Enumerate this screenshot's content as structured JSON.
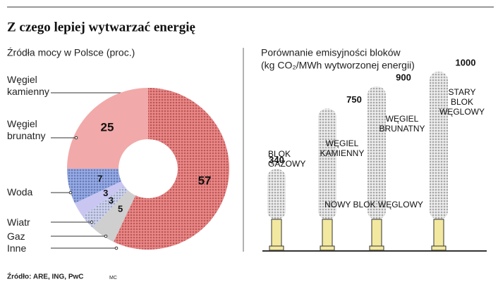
{
  "title": "Z czego lepiej wytwarzać energię",
  "chart_data": [
    {
      "type": "donut",
      "subtitle": "Źródła mocy w Polsce (proc.)",
      "categories": [
        "Węgiel kamienny",
        "Inne",
        "Gaz",
        "Wiatr",
        "Woda",
        "Węgiel brunatny"
      ],
      "values": [
        57,
        5,
        3,
        3,
        7,
        25
      ],
      "colors": [
        "#e04848",
        "#cfcfcf",
        "#b4bce8",
        "#c9c6f2",
        "#5f7fd8",
        "#f2a9a9"
      ]
    },
    {
      "type": "smoke",
      "subtitle": "Porównanie emisyjności bloków",
      "unit_label": "(kg CO₂/MWh wytworzonej energii)",
      "categories": [
        "BLOK GAZOWY",
        "WĘGIEL KAMIENNY",
        "WĘGIEL BRUNATNY",
        "STARY BLOK WĘGLOWY"
      ],
      "values": [
        340,
        750,
        900,
        1000
      ],
      "annotation": "NOWY BLOK WĘGLOWY",
      "color": "#b5b5b5"
    }
  ],
  "source": "Źródło: ARE, ING, PwC",
  "credit": "MC"
}
